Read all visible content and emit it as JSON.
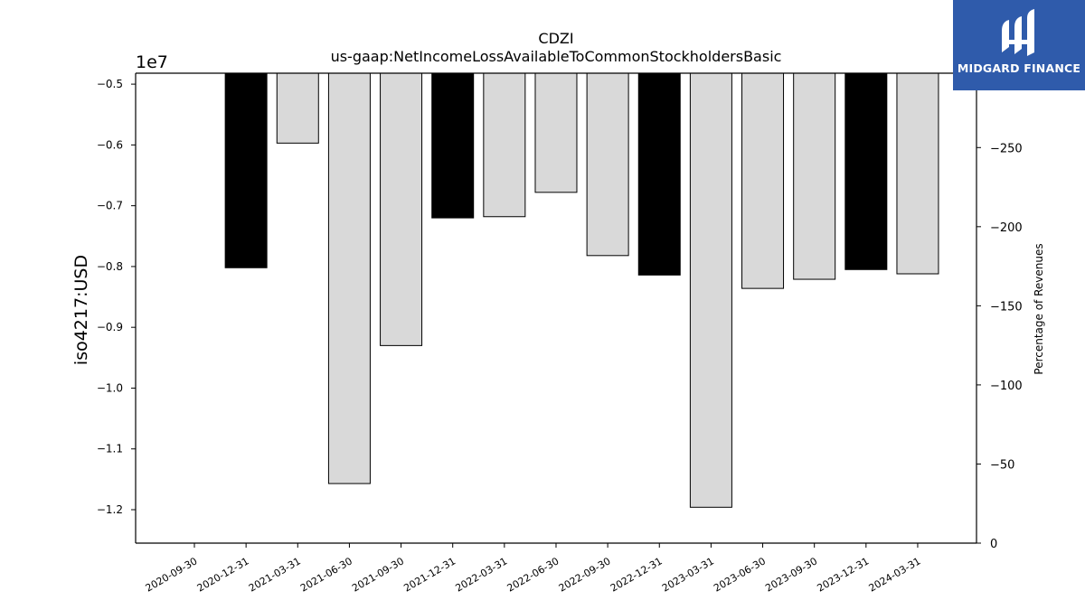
{
  "chart_data": {
    "type": "bar",
    "title": "CDZI",
    "subtitle": "us-gaap:NetIncomeLossAvailableToCommonStockholdersBasic",
    "ylabel": "iso4217:USD",
    "y_offset_label": "1e7",
    "ylabel_right": "Percentage of Revenues",
    "categories": [
      "2020-09-30",
      "2020-12-31",
      "2021-03-31",
      "2021-06-30",
      "2021-09-30",
      "2021-12-31",
      "2022-03-31",
      "2022-06-30",
      "2022-09-30",
      "2022-12-31",
      "2023-03-31",
      "2023-06-30",
      "2023-09-30",
      "2023-12-31",
      "2024-03-31"
    ],
    "values": [
      null,
      -8020000,
      -5970000,
      -11570000,
      -9300000,
      -7200000,
      -7180000,
      -6780000,
      -7820000,
      -8140000,
      -11960000,
      -8360000,
      -8210000,
      -8050000,
      -8120000
    ],
    "highlight": [
      false,
      true,
      false,
      false,
      false,
      true,
      false,
      false,
      false,
      true,
      false,
      false,
      false,
      true,
      false
    ],
    "ylim": [
      -12550000,
      -4820000
    ],
    "yticks": [
      -5000000,
      -6000000,
      -7000000,
      -8000000,
      -9000000,
      -10000000,
      -11000000,
      -12000000
    ],
    "ytick_labels": [
      "−0.5",
      "−0.6",
      "−0.7",
      "−0.8",
      "−0.9",
      "−1.0",
      "−1.1",
      "−1.2"
    ],
    "y2lim": [
      0,
      297
    ],
    "y2ticks": [
      0,
      50,
      100,
      150,
      200,
      250
    ],
    "y2tick_labels": [
      "0",
      "−50",
      "−100",
      "−150",
      "−200",
      "−250"
    ],
    "colors": {
      "highlight": "#000000",
      "normal": "#d9d9d9",
      "edge": "#000000"
    },
    "grid": false
  },
  "logo": {
    "text": "MIDGARD FINANCE",
    "background": "#2f5bab"
  }
}
